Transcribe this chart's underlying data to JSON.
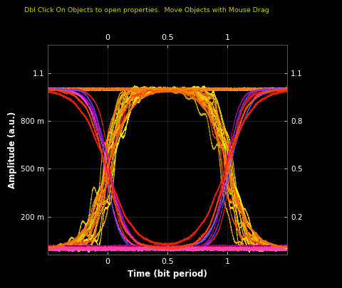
{
  "title": "Dbl Click On Objects to open properties.  Move Objects with Mouse Drag",
  "xlabel": "Time (bit period)",
  "ylabel": "Amplitude (a.u.)",
  "background_color": "#000000",
  "grid_color": "#2a2a2a",
  "axis_label_color": "#ffffff",
  "tick_label_color": "#ffffff",
  "title_color": "#cccc00",
  "xlim": [
    -0.5,
    1.5
  ],
  "ylim": [
    -0.04,
    1.28
  ],
  "left_yticks": [
    0.0,
    0.2,
    0.5,
    0.8,
    1.1
  ],
  "left_ytick_labels": [
    "",
    "200 m",
    "500 m",
    "800 m",
    "1.1"
  ],
  "right_ytick_labels": [
    "",
    "0.2",
    "0.5",
    "0.8",
    "1.1"
  ],
  "xticks": [
    -0.5,
    0.0,
    0.5,
    1.0,
    1.5
  ],
  "xtick_labels": [
    "",
    "0",
    "0.5",
    "1",
    ""
  ],
  "seed": 7,
  "high_level": 1.0,
  "low_level": 0.0,
  "base_rise": 0.055,
  "num_main_traces": 30,
  "colors_yellow": [
    "#ffee00",
    "#ffcc00",
    "#ffaa00",
    "#ddcc00",
    "#ccaa00"
  ],
  "colors_orange": [
    "#ff8800",
    "#ff6600",
    "#ff4400"
  ],
  "colors_low": [
    "#ff2200",
    "#ff0055",
    "#cc00aa",
    "#ff44cc",
    "#6644ff",
    "#4466ff",
    "#aa00ff"
  ],
  "lw_main": 0.7,
  "figsize": [
    4.8,
    4.05
  ],
  "dpi": 100
}
